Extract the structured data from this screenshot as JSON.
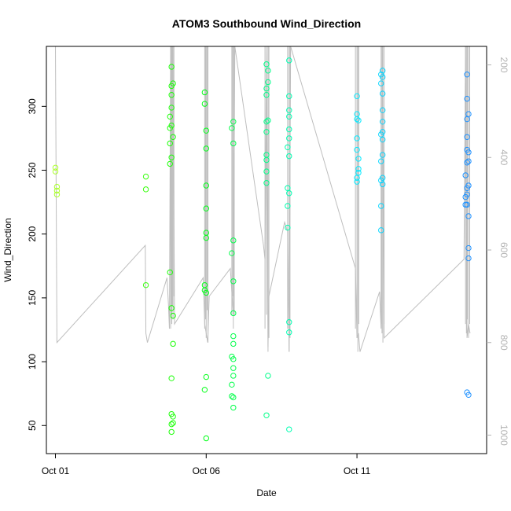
{
  "chart_data": {
    "type": "scatter",
    "title": "ATOM3 Southbound Wind_Direction",
    "xlabel": "Date",
    "ylabel": "Wind_Direction",
    "x_ticks": [
      "Oct 01",
      "Oct 06",
      "Oct 11"
    ],
    "y_ticks": [
      50,
      100,
      150,
      200,
      250,
      300
    ],
    "y2_ticks": [
      200,
      400,
      600,
      800,
      1000
    ],
    "xlim": [
      -0.3,
      14.3
    ],
    "ylim": [
      28,
      347
    ],
    "y2lim": [
      1040,
      160
    ],
    "y2_reversed": true,
    "grid": false,
    "legend": "none",
    "line_color": "#bebebe",
    "point_color_gradient": [
      "#adff2f",
      "#00ff00",
      "#00ffff",
      "#1e90ff"
    ],
    "points": [
      [
        0.0,
        252
      ],
      [
        0.0,
        249
      ],
      [
        0.05,
        237
      ],
      [
        0.05,
        231
      ],
      [
        0.05,
        234
      ],
      [
        3.0,
        245
      ],
      [
        3.0,
        235
      ],
      [
        3.0,
        160
      ],
      [
        3.8,
        283
      ],
      [
        3.8,
        292
      ],
      [
        3.8,
        271
      ],
      [
        3.8,
        255
      ],
      [
        3.8,
        170
      ],
      [
        3.85,
        331
      ],
      [
        3.85,
        316
      ],
      [
        3.85,
        309
      ],
      [
        3.85,
        299
      ],
      [
        3.85,
        285
      ],
      [
        3.85,
        260
      ],
      [
        3.85,
        142
      ],
      [
        3.85,
        87
      ],
      [
        3.85,
        59
      ],
      [
        3.85,
        51
      ],
      [
        3.85,
        45
      ],
      [
        3.9,
        318
      ],
      [
        3.9,
        276
      ],
      [
        3.9,
        136
      ],
      [
        3.9,
        114
      ],
      [
        3.9,
        57
      ],
      [
        3.9,
        52
      ],
      [
        4.95,
        311
      ],
      [
        4.95,
        302
      ],
      [
        4.95,
        160
      ],
      [
        4.95,
        156
      ],
      [
        4.95,
        78
      ],
      [
        5.0,
        281
      ],
      [
        5.0,
        267
      ],
      [
        5.0,
        238
      ],
      [
        5.0,
        220
      ],
      [
        5.0,
        201
      ],
      [
        5.0,
        197
      ],
      [
        5.0,
        154
      ],
      [
        5.0,
        88
      ],
      [
        5.0,
        40
      ],
      [
        5.85,
        283
      ],
      [
        5.85,
        185
      ],
      [
        5.85,
        104
      ],
      [
        5.85,
        73
      ],
      [
        5.85,
        82
      ],
      [
        5.9,
        288
      ],
      [
        5.9,
        271
      ],
      [
        5.9,
        195
      ],
      [
        5.9,
        163
      ],
      [
        5.9,
        138
      ],
      [
        5.9,
        120
      ],
      [
        5.9,
        114
      ],
      [
        5.9,
        102
      ],
      [
        5.9,
        95
      ],
      [
        5.9,
        89
      ],
      [
        5.9,
        72
      ],
      [
        5.9,
        64
      ],
      [
        7.0,
        333
      ],
      [
        7.0,
        314
      ],
      [
        7.0,
        309
      ],
      [
        7.0,
        288
      ],
      [
        7.0,
        280
      ],
      [
        7.0,
        262
      ],
      [
        7.0,
        258
      ],
      [
        7.0,
        249
      ],
      [
        7.0,
        240
      ],
      [
        7.0,
        58
      ],
      [
        7.05,
        328
      ],
      [
        7.05,
        319
      ],
      [
        7.05,
        289
      ],
      [
        7.05,
        89
      ],
      [
        7.7,
        222
      ],
      [
        7.7,
        205
      ],
      [
        7.7,
        268
      ],
      [
        7.7,
        236
      ],
      [
        7.75,
        336
      ],
      [
        7.75,
        308
      ],
      [
        7.75,
        297
      ],
      [
        7.75,
        292
      ],
      [
        7.75,
        282
      ],
      [
        7.75,
        275
      ],
      [
        7.75,
        261
      ],
      [
        7.75,
        232
      ],
      [
        7.75,
        131
      ],
      [
        7.75,
        123
      ],
      [
        7.75,
        47
      ],
      [
        10.0,
        308
      ],
      [
        10.0,
        294
      ],
      [
        10.0,
        290
      ],
      [
        10.0,
        275
      ],
      [
        10.0,
        266
      ],
      [
        10.0,
        244
      ],
      [
        10.0,
        241
      ],
      [
        10.05,
        289
      ],
      [
        10.05,
        259
      ],
      [
        10.05,
        251
      ],
      [
        10.05,
        248
      ],
      [
        10.8,
        325
      ],
      [
        10.8,
        318
      ],
      [
        10.8,
        278
      ],
      [
        10.8,
        257
      ],
      [
        10.8,
        242
      ],
      [
        10.8,
        222
      ],
      [
        10.8,
        203
      ],
      [
        10.85,
        328
      ],
      [
        10.85,
        323
      ],
      [
        10.85,
        310
      ],
      [
        10.85,
        297
      ],
      [
        10.85,
        288
      ],
      [
        10.85,
        280
      ],
      [
        10.85,
        274
      ],
      [
        10.85,
        262
      ],
      [
        10.85,
        244
      ],
      [
        10.85,
        239
      ],
      [
        13.6,
        246
      ],
      [
        13.6,
        229
      ],
      [
        13.6,
        223
      ],
      [
        13.65,
        325
      ],
      [
        13.65,
        306
      ],
      [
        13.65,
        290
      ],
      [
        13.65,
        276
      ],
      [
        13.65,
        266
      ],
      [
        13.65,
        256
      ],
      [
        13.65,
        236
      ],
      [
        13.65,
        231
      ],
      [
        13.65,
        223
      ],
      [
        13.65,
        76
      ],
      [
        13.7,
        294
      ],
      [
        13.7,
        264
      ],
      [
        13.7,
        257
      ],
      [
        13.7,
        238
      ],
      [
        13.7,
        214
      ],
      [
        13.7,
        189
      ],
      [
        13.7,
        181
      ],
      [
        13.7,
        74
      ]
    ],
    "line_x": [
      0,
      0.05,
      2.98,
      3.0,
      3.05,
      3.7,
      3.75,
      3.78,
      3.82,
      3.9,
      3.95,
      4.9,
      4.95,
      5.05,
      5.1,
      5.8,
      5.85,
      5.9,
      5.95,
      6.9,
      6.95,
      7.0,
      7.05,
      7.08,
      7.6,
      7.7,
      7.75,
      7.8,
      9.95,
      10.0,
      10.05,
      10.1,
      10.75,
      10.8,
      10.85,
      10.9,
      13.55,
      13.6,
      13.65,
      13.7,
      13.75
    ],
    "line_y2": [
      160,
      800,
      590,
      780,
      800,
      660,
      720,
      770,
      160,
      160,
      760,
      660,
      760,
      800,
      700,
      640,
      690,
      740,
      160,
      590,
      620,
      160,
      810,
      700,
      540,
      560,
      820,
      160,
      640,
      790,
      780,
      820,
      690,
      770,
      160,
      790,
      620,
      160,
      790,
      760,
      780
    ],
    "vertical_spikes": [
      [
        3.82,
        160,
        770
      ],
      [
        3.84,
        160,
        740
      ],
      [
        3.86,
        160,
        760
      ],
      [
        3.88,
        160,
        720
      ],
      [
        3.9,
        160,
        750
      ],
      [
        3.93,
        160,
        700
      ],
      [
        4.95,
        160,
        770
      ],
      [
        4.98,
        160,
        750
      ],
      [
        5.0,
        160,
        790
      ],
      [
        5.03,
        160,
        730
      ],
      [
        5.06,
        160,
        800
      ],
      [
        5.85,
        160,
        740
      ],
      [
        5.88,
        160,
        700
      ],
      [
        5.9,
        160,
        770
      ],
      [
        5.93,
        160,
        740
      ],
      [
        6.95,
        160,
        770
      ],
      [
        7.0,
        160,
        740
      ],
      [
        7.05,
        160,
        820
      ],
      [
        7.08,
        160,
        790
      ],
      [
        7.7,
        160,
        770
      ],
      [
        7.75,
        160,
        820
      ],
      [
        7.78,
        160,
        790
      ],
      [
        9.95,
        160,
        770
      ],
      [
        10.0,
        160,
        790
      ],
      [
        10.03,
        160,
        820
      ],
      [
        10.06,
        160,
        760
      ],
      [
        10.8,
        160,
        760
      ],
      [
        10.83,
        160,
        780
      ],
      [
        10.86,
        160,
        800
      ],
      [
        10.9,
        160,
        760
      ],
      [
        13.6,
        160,
        760
      ],
      [
        13.63,
        160,
        780
      ],
      [
        13.66,
        160,
        750
      ],
      [
        13.7,
        160,
        790
      ],
      [
        13.74,
        160,
        760
      ]
    ]
  }
}
